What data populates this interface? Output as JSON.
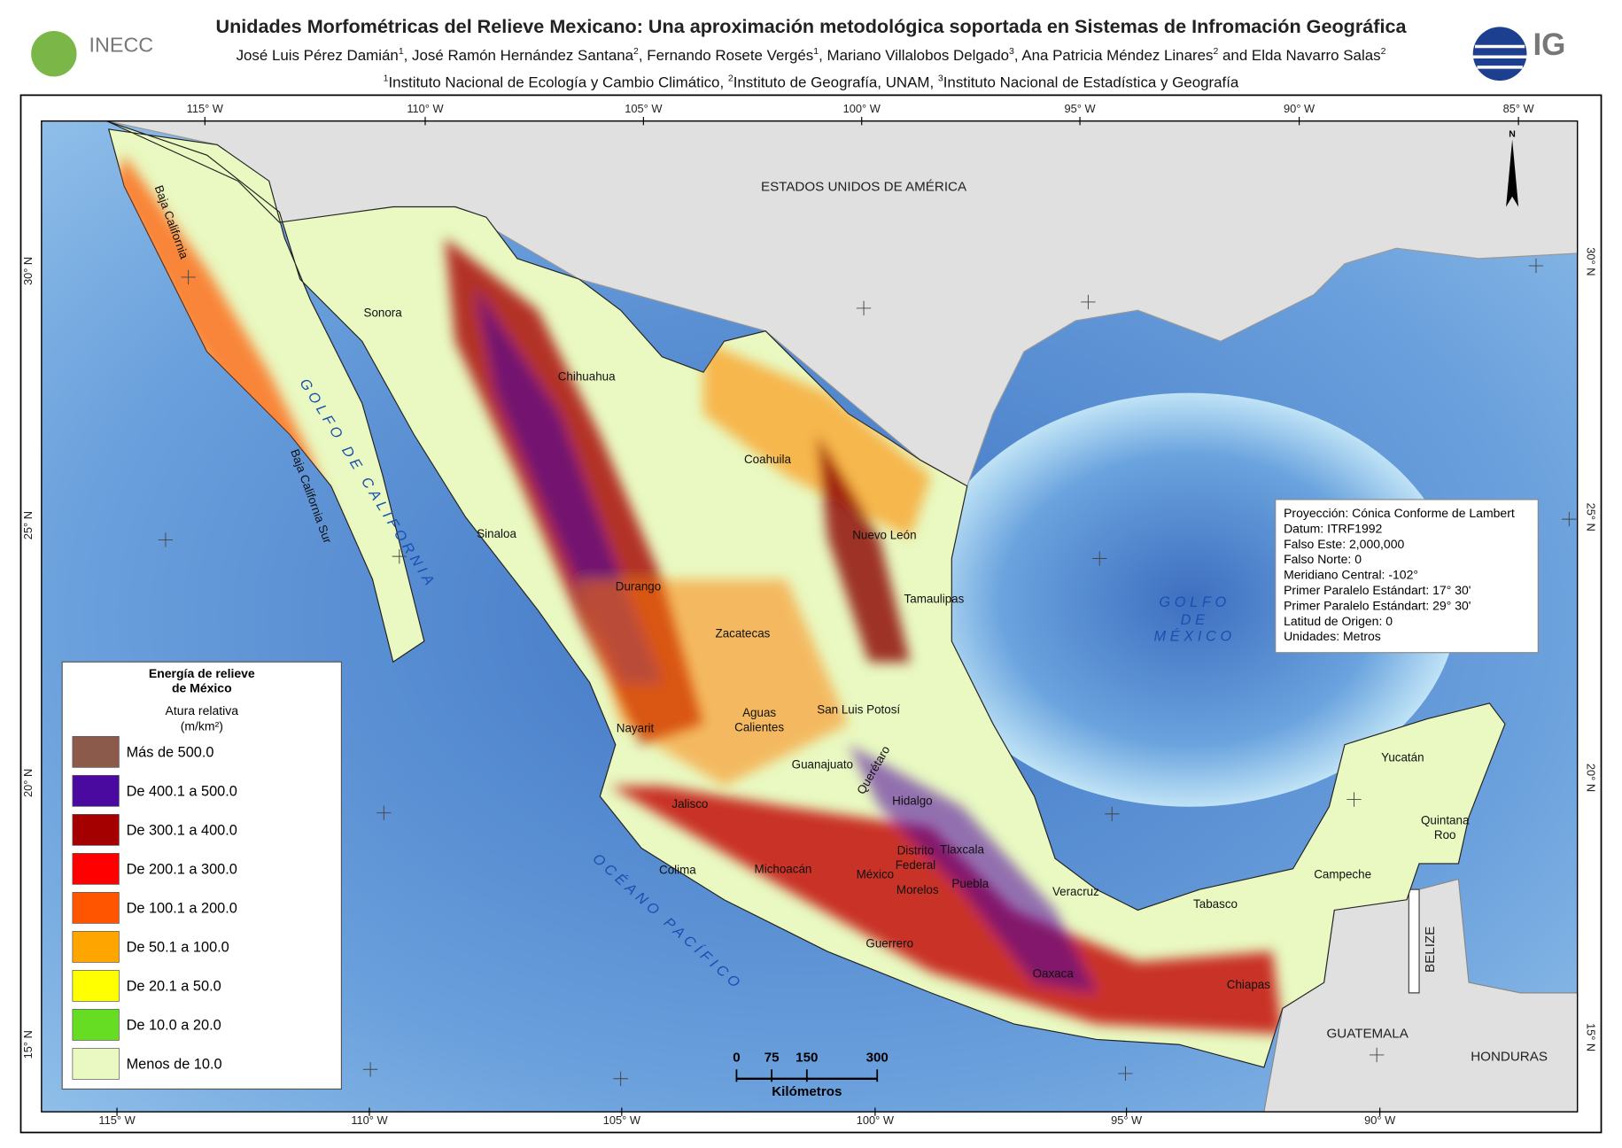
{
  "header": {
    "title": "Unidades Morfométricas del Relieve Mexicano: Una aproximación metodológica soportada en Sistemas de Infromación Geográfica",
    "authors": [
      {
        "text": "José Luis Pérez Damián",
        "sup": "1"
      },
      {
        "text": ", José Ramón Hernández Santana",
        "sup": "2"
      },
      {
        "text": ", Fernando Rosete Vergés",
        "sup": "1"
      },
      {
        "text": ", Mariano Villalobos Delgado",
        "sup": "3"
      },
      {
        "text": ", Ana Patricia Méndez Linares",
        "sup": "2"
      },
      {
        "text": " and Elda Navarro Salas",
        "sup": "2"
      }
    ],
    "affiliations": [
      {
        "sup": "1",
        "text": "Instituto Nacional de Ecología y Cambio Climático, "
      },
      {
        "sup": "2",
        "text": "Instituto de Geografía, UNAM, "
      },
      {
        "sup": "3",
        "text": "Instituto Nacional de Estadística y Geografía"
      }
    ],
    "logo_left": "INECC",
    "logo_right": "IG"
  },
  "map": {
    "graticule_top": [
      "115° W",
      "110° W",
      "105° W",
      "100° W",
      "95° W",
      "90° W",
      "85° W"
    ],
    "graticule_bottom": [
      "115° W",
      "110° W",
      "105° W",
      "100° W",
      "95° W",
      "90° W"
    ],
    "graticule_left": [
      "30° N",
      "25° N",
      "20° N",
      "15° N"
    ],
    "graticule_right": [
      "30° N",
      "25° N",
      "20° N",
      "15° N"
    ],
    "places": [
      [
        "Baja California"
      ],
      [
        "Sonora"
      ],
      [
        "Chihuahua"
      ],
      [
        "Coahuila"
      ],
      [
        "Nuevo León"
      ],
      [
        "Tamaulipas"
      ],
      [
        "Sinaloa"
      ],
      [
        "Durango"
      ],
      [
        "Zacatecas"
      ],
      [
        "Baja California Sur"
      ],
      [
        "Nayarit"
      ],
      [
        "Aguas",
        "Calientes"
      ],
      [
        "San Luis Potosí"
      ],
      [
        "Guanajuato"
      ],
      [
        "Querétaro"
      ],
      [
        "Hidalgo"
      ],
      [
        "Jalisco"
      ],
      [
        "Colima"
      ],
      [
        "Michoacán"
      ],
      [
        "Distrito",
        "Federal"
      ],
      [
        "Tlaxcala"
      ],
      [
        "México"
      ],
      [
        "Morelos"
      ],
      [
        "Puebla"
      ],
      [
        "Guerrero"
      ],
      [
        "Veracruz"
      ],
      [
        "Oaxaca"
      ],
      [
        "Tabasco"
      ],
      [
        "Chiapas"
      ],
      [
        "Campeche"
      ],
      [
        "Yucatán"
      ],
      [
        "Quintana",
        "Roo"
      ]
    ],
    "countries": [
      "ESTADOS UNIDOS DE AMÉRICA",
      "BELIZE",
      "GUATEMALA",
      "HONDURAS"
    ],
    "seas": [
      "GOLFO DE CALIFORNIA",
      "OCÉANO PACÍFICO",
      "GOLFO",
      "DE",
      "MÉXICO"
    ],
    "north": "N"
  },
  "legend": {
    "title": [
      "Energía de relieve",
      "de México"
    ],
    "subtitle": [
      "Atura relativa",
      "(m/km²)"
    ],
    "items": [
      {
        "label": "Más de 500.0",
        "color": "#8c5a4b"
      },
      {
        "label": "De 400.1 a 500.0",
        "color": "#4a0aa0"
      },
      {
        "label": "De 300.1 a 400.0",
        "color": "#a50000"
      },
      {
        "label": "De 200.1 a 300.0",
        "color": "#ff0000"
      },
      {
        "label": "De 100.1 a 200.0",
        "color": "#ff5500"
      },
      {
        "label": "De 50.1 a 100.0",
        "color": "#ffa500"
      },
      {
        "label": "De 20.1 a 50.0",
        "color": "#ffff00"
      },
      {
        "label": "De 10.0 a 20.0",
        "color": "#66dd22"
      },
      {
        "label": "Menos de 10.0",
        "color": "#e9f9c1"
      }
    ]
  },
  "info": [
    "Proyección: Cónica Conforme de Lambert",
    "Datum: ITRF1992",
    "Falso Este: 2,000,000",
    "Falso Norte: 0",
    "Meridiano Central: -102°",
    "Primer Paralelo Estándart: 17° 30'",
    "Primer Paralelo Estándart: 29° 30'",
    "Latitud de Origen: 0",
    "Unidades: Metros"
  ],
  "scale": {
    "ticks": [
      0,
      75,
      150,
      300
    ],
    "unit": "Kilómetros"
  }
}
